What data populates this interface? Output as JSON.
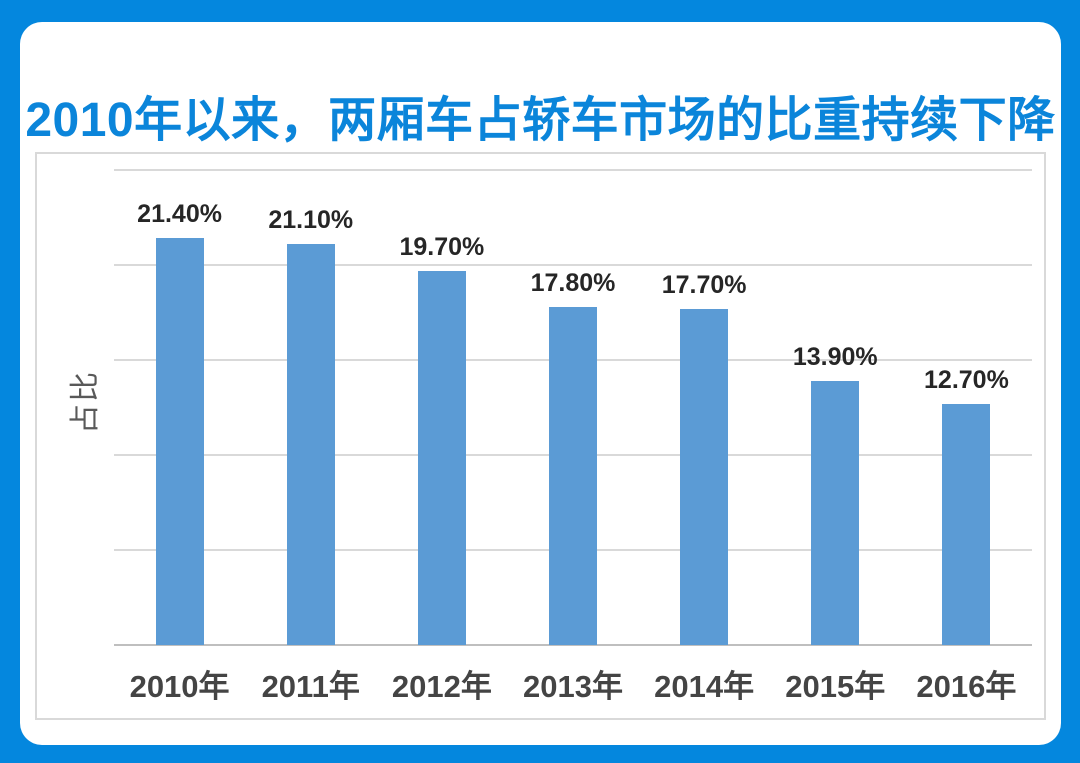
{
  "header": {
    "title": "2010年以来，两厢车占轿车市场的比重持续下降"
  },
  "chart_data": {
    "type": "bar",
    "title": "2010年以来，两厢车占轿车市场的比重持续下降",
    "categories": [
      "2010年",
      "2011年",
      "2012年",
      "2013年",
      "2014年",
      "2015年",
      "2016年"
    ],
    "values": [
      21.4,
      21.1,
      19.7,
      17.8,
      17.7,
      13.9,
      12.7
    ],
    "value_labels": [
      "21.40%",
      "21.10%",
      "19.70%",
      "17.80%",
      "17.70%",
      "13.90%",
      "12.70%"
    ],
    "xlabel": "",
    "ylabel": "占比",
    "ylim": [
      0,
      25
    ],
    "grid_step": 5,
    "grid": "horizontal-only",
    "legend": "none",
    "colors": {
      "bar": "#5B9BD5",
      "frame": "#0487DE",
      "title": "#0B85DA",
      "gridline": "#D9D9D9",
      "baseline": "#BFBFBF",
      "data_label": "#262626",
      "x_label": "#444444",
      "y_axis_title": "#595959",
      "panel_border": "#D9D9D9"
    }
  }
}
